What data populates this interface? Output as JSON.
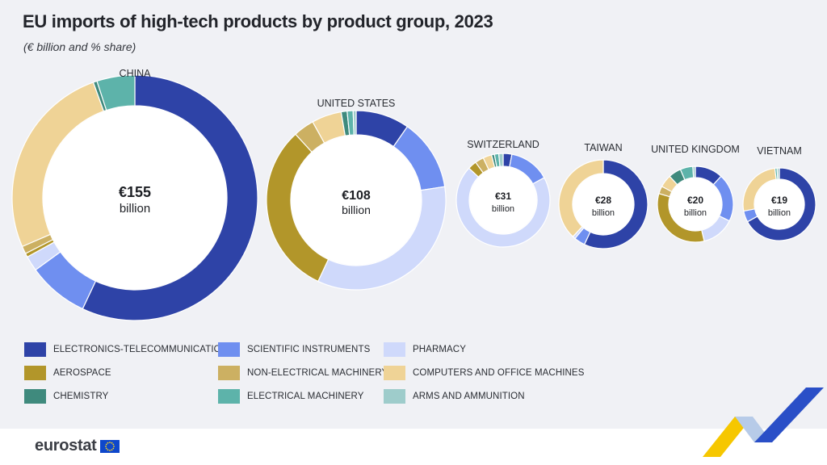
{
  "title": "EU imports of high-tech products by product group, 2023",
  "subtitle": "(€ billion and % share)",
  "colors": {
    "ELECTRONICS-TELECOMMUNICATIONS": "#2e43a7",
    "SCIENTIFIC INSTRUMENTS": "#6f8ff0",
    "PHARMACY": "#cfd9fb",
    "AEROSPACE": "#b2962a",
    "NON-ELECTRICAL MACHINERY": "#ccb062",
    "COMPUTERS AND OFFICE MACHINES": "#efd396",
    "CHEMISTRY": "#3f8a7d",
    "ELECTRICAL MACHINERY": "#5db3aa",
    "ARMS AND AMMUNITION": "#9ecccb"
  },
  "chart_data": {
    "type": "pie",
    "variant": "donut",
    "groups": [
      "ELECTRONICS-TELECOMMUNICATIONS",
      "SCIENTIFIC INSTRUMENTS",
      "PHARMACY",
      "AEROSPACE",
      "NON-ELECTRICAL MACHINERY",
      "COMPUTERS AND OFFICE MACHINES",
      "CHEMISTRY",
      "ELECTRICAL MACHINERY",
      "ARMS AND AMMUNITION"
    ],
    "legend_position": "bottom",
    "partners": [
      {
        "name": "CHINA",
        "total": 155,
        "total_label": "€155",
        "unit_label": "billion",
        "shares": [
          57,
          8,
          2,
          0.5,
          1,
          26,
          0.5,
          5,
          0
        ]
      },
      {
        "name": "UNITED STATES",
        "total": 108,
        "total_label": "€108",
        "unit_label": "billion",
        "shares": [
          9,
          12,
          32,
          29,
          3.5,
          5,
          1,
          1,
          0.5
        ]
      },
      {
        "name": "SWITZERLAND",
        "total": 31,
        "total_label": "€31",
        "unit_label": "billion",
        "shares": [
          3,
          14,
          70,
          3,
          3,
          3,
          1,
          1.5,
          1.5
        ]
      },
      {
        "name": "TAIWAN",
        "total": 28,
        "total_label": "€28",
        "unit_label": "billion",
        "shares": [
          57,
          4,
          1,
          0,
          0,
          38,
          0,
          0,
          0
        ]
      },
      {
        "name": "UNITED KINGDOM",
        "total": 20,
        "total_label": "€20",
        "unit_label": "billion",
        "shares": [
          11,
          19,
          13,
          31,
          3,
          5,
          5,
          5,
          1
        ]
      },
      {
        "name": "VIETNAM",
        "total": 19,
        "total_label": "€19",
        "unit_label": "billion",
        "shares": [
          67,
          5,
          0,
          0,
          0,
          26,
          0,
          1,
          1
        ]
      }
    ]
  },
  "legend": [
    "ELECTRONICS-TELECOMMUNICATIONS",
    "SCIENTIFIC INSTRUMENTS",
    "PHARMACY",
    "AEROSPACE",
    "NON-ELECTRICAL MACHINERY",
    "COMPUTERS AND OFFICE MACHINES",
    "CHEMISTRY",
    "ELECTRICAL MACHINERY",
    "ARMS AND AMMUNITION"
  ],
  "footer": {
    "logo": "eurostat"
  }
}
